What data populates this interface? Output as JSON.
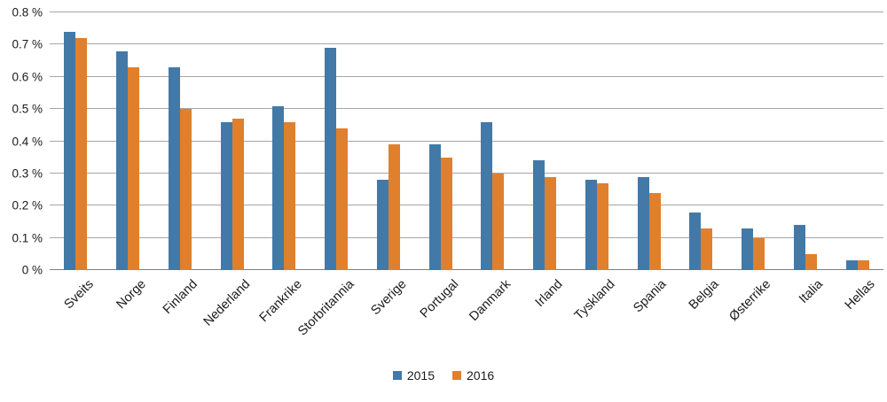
{
  "chart_data": {
    "type": "bar",
    "title": "",
    "xlabel": "",
    "ylabel": "",
    "ylim": [
      0,
      0.8
    ],
    "grid": true,
    "legend_position": "bottom",
    "ytick_labels": [
      "0 %",
      "0.1 %",
      "0.2 %",
      "0.3 %",
      "0.4 %",
      "0.5 %",
      "0.6 %",
      "0.7 %",
      "0.8 %"
    ],
    "ytick_values": [
      0,
      0.1,
      0.2,
      0.3,
      0.4,
      0.5,
      0.6,
      0.7,
      0.8
    ],
    "categories": [
      "Sveits",
      "Norge",
      "Finland",
      "Nederland",
      "Frankrike",
      "Storbritannia",
      "Sverige",
      "Portugal",
      "Danmark",
      "Irland",
      "Tyskland",
      "Spania",
      "Belgia",
      "Østerrike",
      "Italia",
      "Hellas"
    ],
    "series": [
      {
        "name": "2015",
        "color": "#4379a7",
        "values": [
          0.74,
          0.68,
          0.63,
          0.46,
          0.51,
          0.69,
          0.28,
          0.39,
          0.46,
          0.34,
          0.28,
          0.29,
          0.18,
          0.13,
          0.14,
          0.03
        ]
      },
      {
        "name": "2016",
        "color": "#e0802c",
        "values": [
          0.72,
          0.63,
          0.5,
          0.47,
          0.46,
          0.44,
          0.39,
          0.35,
          0.3,
          0.29,
          0.27,
          0.24,
          0.13,
          0.1,
          0.05,
          0.03
        ]
      }
    ]
  },
  "colors": {
    "gridline": "#a6a6a6",
    "axis_line": "#808080",
    "text": "#1a1a1a",
    "background": "#ffffff"
  }
}
